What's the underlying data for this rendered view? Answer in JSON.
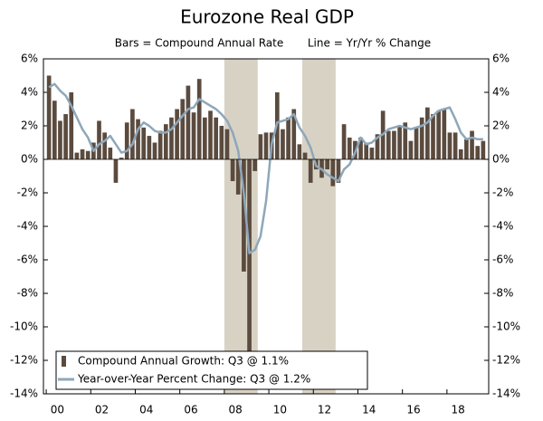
{
  "chart_data": {
    "type": "bar_line",
    "title": "Eurozone Real GDP",
    "subtitle": [
      "Bars = Compound Annual Rate",
      "Line = Yr/Yr % Change"
    ],
    "categories": [
      "00",
      null,
      null,
      null,
      null,
      null,
      null,
      null,
      "02",
      null,
      null,
      null,
      null,
      null,
      null,
      null,
      "04",
      null,
      null,
      null,
      null,
      null,
      null,
      null,
      "06",
      null,
      null,
      null,
      null,
      null,
      null,
      null,
      "08",
      null,
      null,
      null,
      null,
      null,
      null,
      null,
      "10",
      null,
      null,
      null,
      null,
      null,
      null,
      null,
      "12",
      null,
      null,
      null,
      null,
      null,
      null,
      null,
      "14",
      null,
      null,
      null,
      null,
      null,
      null,
      null,
      "16",
      null,
      null,
      null,
      null,
      null,
      null,
      null,
      "18",
      null,
      null,
      null,
      null,
      null,
      null
    ],
    "series": [
      {
        "name": "Compound Annual Growth: Q3 @ 1.1%",
        "kind": "bar",
        "color": "#5b4b3f",
        "values": [
          5.0,
          3.5,
          2.3,
          2.7,
          4.0,
          0.4,
          0.6,
          0.5,
          1.0,
          2.3,
          1.6,
          0.7,
          -1.4,
          0.1,
          2.2,
          3.0,
          2.4,
          1.9,
          1.4,
          1.0,
          1.7,
          2.1,
          2.5,
          3.0,
          3.6,
          4.4,
          2.8,
          4.8,
          2.5,
          2.9,
          2.5,
          2.0,
          1.8,
          -1.3,
          -2.1,
          -6.7,
          -11.8,
          -0.7,
          1.5,
          1.6,
          1.6,
          4.0,
          1.8,
          2.5,
          3.0,
          0.9,
          0.4,
          -1.4,
          -0.6,
          -1.1,
          -0.6,
          -1.6,
          -1.4,
          2.1,
          1.3,
          1.1,
          1.3,
          1.0,
          0.7,
          1.5,
          2.9,
          1.7,
          1.7,
          2.0,
          2.2,
          1.1,
          1.9,
          2.5,
          3.1,
          2.7,
          2.9,
          3.0,
          1.6,
          1.6,
          0.6,
          1.2,
          1.7,
          0.8,
          1.1
        ]
      },
      {
        "name": "Year-over-Year Percent Change: Q3 @ 1.2%",
        "kind": "line",
        "axis": "y2",
        "color": "#8ea7ba",
        "values": [
          4.3,
          4.5,
          4.1,
          3.8,
          3.2,
          2.5,
          1.8,
          1.3,
          0.5,
          0.9,
          1.1,
          1.4,
          0.9,
          0.4,
          0.5,
          0.9,
          1.8,
          2.2,
          2.0,
          1.7,
          1.6,
          1.6,
          1.8,
          2.2,
          2.6,
          3.0,
          3.1,
          3.6,
          3.4,
          3.2,
          3.0,
          2.7,
          2.3,
          1.6,
          0.5,
          -2.0,
          -5.6,
          -5.4,
          -4.6,
          -2.5,
          0.9,
          2.2,
          2.3,
          2.4,
          2.7,
          1.9,
          1.4,
          0.7,
          -0.4,
          -0.6,
          -0.9,
          -1.1,
          -1.3,
          -0.6,
          -0.3,
          0.4,
          1.3,
          0.9,
          1.0,
          1.3,
          1.5,
          1.8,
          1.9,
          2.0,
          1.9,
          1.8,
          1.9,
          2.0,
          2.2,
          2.6,
          2.9,
          3.0,
          3.1,
          2.4,
          1.6,
          1.2,
          1.3,
          1.2,
          1.2
        ]
      }
    ],
    "shaded_ranges": [
      [
        32,
        37
      ],
      [
        46,
        51
      ]
    ],
    "shade_color": "#d8d2c4",
    "ylim": [
      -14,
      6
    ],
    "yticks": [
      {
        "value": -14,
        "label": "-14%"
      },
      {
        "value": -12,
        "label": "-12%"
      },
      {
        "value": -10,
        "label": "-10%"
      },
      {
        "value": -8,
        "label": "-8%"
      },
      {
        "value": -6,
        "label": "-6%"
      },
      {
        "value": -4,
        "label": "-4%"
      },
      {
        "value": -2,
        "label": "-2%"
      },
      {
        "value": 0,
        "label": "0%"
      },
      {
        "value": 2,
        "label": "2%"
      },
      {
        "value": 4,
        "label": "4%"
      },
      {
        "value": 6,
        "label": "6%"
      }
    ],
    "y2lim": [
      -14,
      6
    ],
    "y2ticks": [
      {
        "value": -14,
        "label": "-14%"
      },
      {
        "value": -12,
        "label": "-12%"
      },
      {
        "value": -10,
        "label": "-10%"
      },
      {
        "value": -8,
        "label": "-8%"
      },
      {
        "value": -6,
        "label": "-6%"
      },
      {
        "value": -4,
        "label": "-4%"
      },
      {
        "value": -2,
        "label": "-2%"
      },
      {
        "value": 0,
        "label": "0%"
      },
      {
        "value": 2,
        "label": "2%"
      },
      {
        "value": 4,
        "label": "4%"
      },
      {
        "value": 6,
        "label": "6%"
      }
    ],
    "legend": "bottom-left"
  }
}
